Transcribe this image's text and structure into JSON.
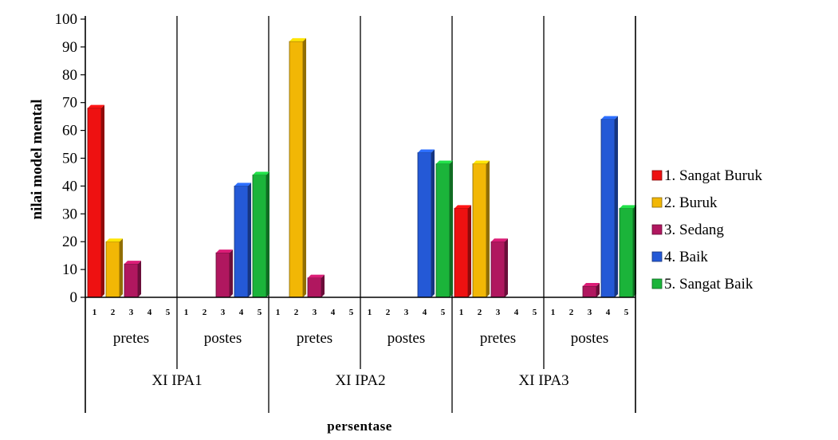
{
  "chart_data": {
    "type": "bar",
    "title": "",
    "ylabel": "nilai model mental",
    "xlabel": "persentase",
    "ylim": [
      0,
      100
    ],
    "yticks": [
      0,
      10,
      20,
      30,
      40,
      50,
      60,
      70,
      80,
      90,
      100
    ],
    "subcategories": [
      "1",
      "2",
      "3",
      "4",
      "5"
    ],
    "legend_position": "right",
    "series": [
      {
        "name": "1. Sangat Buruk",
        "color": "#ee1111"
      },
      {
        "name": "2. Buruk",
        "color": "#f2b705"
      },
      {
        "name": "3. Sedang",
        "color": "#b0175f"
      },
      {
        "name": "4. Baik",
        "color": "#2459d6"
      },
      {
        "name": "5. Sangat Baik",
        "color": "#1bb43a"
      }
    ],
    "groups": [
      {
        "class": "XI IPA1",
        "phases": [
          {
            "phase": "pretes",
            "values": [
              68,
              20,
              12,
              0,
              0
            ]
          },
          {
            "phase": "postes",
            "values": [
              0,
              0,
              16,
              40,
              44
            ]
          }
        ]
      },
      {
        "class": "XI IPA2",
        "phases": [
          {
            "phase": "pretes",
            "values": [
              0,
              92,
              7,
              0,
              0
            ]
          },
          {
            "phase": "postes",
            "values": [
              0,
              0,
              0,
              52,
              48
            ]
          }
        ]
      },
      {
        "class": "XI IPA3",
        "phases": [
          {
            "phase": "pretes",
            "values": [
              32,
              48,
              20,
              0,
              0
            ]
          },
          {
            "phase": "postes",
            "values": [
              0,
              0,
              4,
              64,
              32
            ]
          }
        ]
      }
    ]
  }
}
